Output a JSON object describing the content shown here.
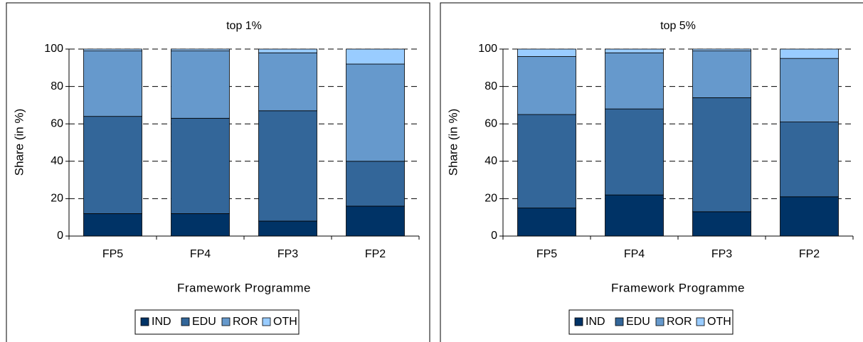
{
  "chart_data": [
    {
      "type": "bar",
      "stacked": true,
      "title": "top 1%",
      "x_label": "Framework Programme",
      "y_label": "Share (in %)",
      "categories": [
        "FP5",
        "FP4",
        "FP3",
        "FP2"
      ],
      "series": [
        {
          "name": "IND",
          "color": "#003366",
          "values": [
            12,
            12,
            8,
            16
          ]
        },
        {
          "name": "EDU",
          "color": "#336699",
          "values": [
            52,
            51,
            59,
            24
          ]
        },
        {
          "name": "ROR",
          "color": "#6699cc",
          "values": [
            35,
            36,
            31,
            52
          ]
        },
        {
          "name": "OTH",
          "color": "#99ccff",
          "values": [
            1,
            1,
            2,
            8
          ]
        }
      ],
      "ylim": [
        0,
        100
      ],
      "yticks": [
        0,
        20,
        40,
        60,
        80,
        100
      ],
      "grid": true,
      "legend": "bottom"
    },
    {
      "type": "bar",
      "stacked": true,
      "title": "top 5%",
      "x_label": "Framework Programme",
      "y_label": "Share (in %)",
      "categories": [
        "FP5",
        "FP4",
        "FP3",
        "FP2"
      ],
      "series": [
        {
          "name": "IND",
          "color": "#003366",
          "values": [
            15,
            22,
            13,
            21
          ]
        },
        {
          "name": "EDU",
          "color": "#336699",
          "values": [
            50,
            46,
            61,
            40
          ]
        },
        {
          "name": "ROR",
          "color": "#6699cc",
          "values": [
            31,
            30,
            25,
            34
          ]
        },
        {
          "name": "OTH",
          "color": "#99ccff",
          "values": [
            4,
            2,
            1,
            5
          ]
        }
      ],
      "ylim": [
        0,
        100
      ],
      "yticks": [
        0,
        20,
        40,
        60,
        80,
        100
      ],
      "grid": true,
      "legend": "bottom"
    }
  ]
}
